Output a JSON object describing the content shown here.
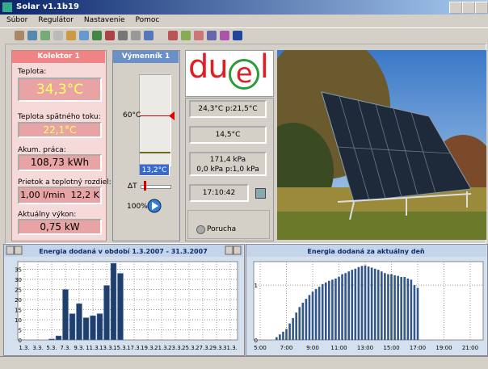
{
  "window": {
    "title": "Solar v1.1b19"
  },
  "menu": [
    "Súbor",
    "Regulátor",
    "Nastavenie",
    "Pomoc"
  ],
  "collector": {
    "header": "Kolektor 1",
    "fields": [
      {
        "label": "Teplota:",
        "value": "34,3°C"
      },
      {
        "label": "Teplota spätného toku:",
        "value": "22,1°C"
      },
      {
        "label": "Akum. práca:",
        "value": "108,73 kWh"
      },
      {
        "label": "Prietok a teplotný rozdiel:",
        "value": "1,00 l/min",
        "value2": "12,2 K"
      },
      {
        "label": "Aktuálny výkon:",
        "value": "0,75 kW"
      }
    ]
  },
  "exchanger": {
    "header": "Výmenník 1",
    "setpoint": "60°C",
    "temperature": "13,2°C",
    "delta_label": "ΔT",
    "pump": "100%"
  },
  "logo": [
    "du",
    "e",
    "l"
  ],
  "readouts": [
    "24,3°C p:21,5°C",
    "14,5°C",
    "171,4 kPa",
    "0,0 kPa p:1,0 kPa",
    "17:10:42"
  ],
  "fault": "Porucha",
  "chart_data": [
    {
      "type": "bar",
      "title": "Energia dodaná v období 1.3.2007 - 31.3.2007",
      "color": "#1f3f6e",
      "categories": [
        "1.3.",
        null,
        "3.3.",
        null,
        "5.3.",
        null,
        "7.3.",
        null,
        "9.3.",
        null,
        "11.3.",
        null,
        "13.3.",
        null,
        "15.3.",
        null,
        "17.3.",
        null,
        "19.3.",
        null,
        "21.3.",
        null,
        "23.3.",
        null,
        "25.3.",
        null,
        "27.3.",
        null,
        "29.3.",
        null,
        "31.3."
      ],
      "values": [
        0,
        0,
        0,
        0,
        0.5,
        2,
        25,
        13,
        18,
        11,
        12,
        13,
        27,
        38,
        33,
        0,
        0,
        0,
        0,
        0,
        0,
        0,
        0,
        0,
        0,
        0,
        0,
        0,
        0,
        0,
        0
      ],
      "ylim": [
        0,
        38
      ],
      "yticks": [
        0,
        5,
        10,
        15,
        20,
        25,
        30,
        35
      ],
      "grid": true
    },
    {
      "type": "timebar",
      "title": "Energia dodaná za aktuálny deň",
      "color": "#34578a",
      "x": [
        6.25,
        6.5,
        6.75,
        7,
        7.25,
        7.5,
        7.75,
        8,
        8.25,
        8.5,
        8.75,
        9,
        9.25,
        9.5,
        9.75,
        10,
        10.25,
        10.5,
        10.75,
        11,
        11.25,
        11.5,
        11.75,
        12,
        12.25,
        12.5,
        12.75,
        13,
        13.25,
        13.5,
        13.75,
        14,
        14.25,
        14.5,
        14.75,
        15,
        15.25,
        15.5,
        15.75,
        16,
        16.25,
        16.5,
        16.75,
        17
      ],
      "values": [
        0.05,
        0.1,
        0.15,
        0.2,
        0.3,
        0.4,
        0.5,
        0.6,
        0.68,
        0.75,
        0.82,
        0.88,
        0.93,
        0.97,
        1.02,
        1.05,
        1.08,
        1.1,
        1.12,
        1.15,
        1.2,
        1.22,
        1.25,
        1.28,
        1.3,
        1.33,
        1.35,
        1.36,
        1.34,
        1.32,
        1.3,
        1.28,
        1.25,
        1.22,
        1.2,
        1.2,
        1.18,
        1.17,
        1.15,
        1.15,
        1.12,
        1.1,
        1.0,
        0.95
      ],
      "xlim": [
        5,
        21
      ],
      "xticks": [
        {
          "value": 5,
          "label": "5:00"
        },
        {
          "value": 7,
          "label": "7:00"
        },
        {
          "value": 9,
          "label": "9:00"
        },
        {
          "value": 11,
          "label": "11:00"
        },
        {
          "value": 13,
          "label": "13:00"
        },
        {
          "value": 15,
          "label": "15:00"
        },
        {
          "value": 17,
          "label": "17:00"
        },
        {
          "value": 19,
          "label": "19:00"
        },
        {
          "value": 21,
          "label": "21:00"
        }
      ],
      "ylim": [
        0,
        1.4
      ],
      "yticks": [
        0,
        1
      ],
      "grid": true
    }
  ]
}
